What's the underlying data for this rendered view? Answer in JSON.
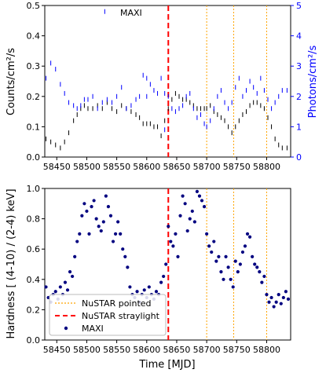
{
  "chart_data": [
    {
      "type": "scatter",
      "title": "",
      "annotation": "MAXI",
      "xlabel": "",
      "ylabel": "Counts/cm²/s",
      "ylabel_right": "Photons/cm²/s",
      "xlim": [
        58430,
        58840
      ],
      "ylim": [
        0,
        0.5
      ],
      "ylim_right": [
        0,
        5
      ],
      "xticks": [
        "58450",
        "58500",
        "58550",
        "58600",
        "58650",
        "58700",
        "58750",
        "58800"
      ],
      "yticks": [
        "0.0",
        "0.1",
        "0.2",
        "0.3",
        "0.4",
        "0.5"
      ],
      "yticks_right": [
        "0",
        "1",
        "2",
        "3",
        "4",
        "5"
      ],
      "colors": {
        "counts": "#000000",
        "photons": "#0000ff"
      },
      "series": [
        {
          "axis": "left",
          "x": [
            58432,
            58440,
            58448,
            58456,
            58463,
            58470,
            58478,
            58484,
            58490,
            58496,
            58502,
            58510,
            58518,
            58526,
            58534,
            58542,
            58550,
            58558,
            58566,
            58574,
            58582,
            58588,
            58594,
            58600,
            58606,
            58612,
            58618,
            58624,
            58630,
            58636,
            58642,
            58648,
            58654,
            58660,
            58666,
            58672,
            58678,
            58684,
            58690,
            58696,
            58700,
            58706,
            58712,
            58718,
            58724,
            58730,
            58736,
            58742,
            58748,
            58754,
            58760,
            58766,
            58772,
            58778,
            58784,
            58790,
            58796,
            58802,
            58808,
            58814,
            58820,
            58826,
            58834
          ],
          "y": [
            0.06,
            0.05,
            0.04,
            0.03,
            0.05,
            0.08,
            0.12,
            0.14,
            0.16,
            0.17,
            0.16,
            0.16,
            0.17,
            0.16,
            0.18,
            0.16,
            0.15,
            0.17,
            0.16,
            0.15,
            0.14,
            0.13,
            0.11,
            0.11,
            0.11,
            0.1,
            0.1,
            0.07,
            0.12,
            0.16,
            0.19,
            0.21,
            0.2,
            0.19,
            0.19,
            0.18,
            0.17,
            0.16,
            0.16,
            0.16,
            0.16,
            0.17,
            0.15,
            0.14,
            0.13,
            0.12,
            0.1,
            0.08,
            0.1,
            0.12,
            0.14,
            0.15,
            0.17,
            0.18,
            0.18,
            0.17,
            0.16,
            0.13,
            0.1,
            0.06,
            0.04,
            0.03,
            0.03
          ]
        },
        {
          "axis": "right",
          "x": [
            58432,
            58440,
            58448,
            58456,
            58463,
            58470,
            58478,
            58484,
            58490,
            58496,
            58502,
            58510,
            58518,
            58526,
            58534,
            58542,
            58550,
            58558,
            58566,
            58574,
            58582,
            58588,
            58594,
            58600,
            58606,
            58612,
            58618,
            58624,
            58630,
            58636,
            58642,
            58648,
            58654,
            58660,
            58666,
            58672,
            58678,
            58684,
            58690,
            58696,
            58700,
            58706,
            58712,
            58718,
            58724,
            58730,
            58736,
            58742,
            58748,
            58754,
            58760,
            58766,
            58772,
            58778,
            58784,
            58790,
            58796,
            58802,
            58808,
            58814,
            58820,
            58826,
            58834,
            58530,
            58600,
            58630
          ],
          "y": [
            2.6,
            3.1,
            2.9,
            2.4,
            2.1,
            1.8,
            1.7,
            1.6,
            1.7,
            1.9,
            1.9,
            2.0,
            1.6,
            1.8,
            1.9,
            1.8,
            2.0,
            2.3,
            1.6,
            1.7,
            1.9,
            2.0,
            2.7,
            2.6,
            2.4,
            2.2,
            2.1,
            2.6,
            2.1,
            2.0,
            1.6,
            1.5,
            1.6,
            1.7,
            2.0,
            2.1,
            1.6,
            1.3,
            1.4,
            1.1,
            1.0,
            1.2,
            1.6,
            2.0,
            2.2,
            1.8,
            1.6,
            1.8,
            2.3,
            2.6,
            2.0,
            2.2,
            2.5,
            2.3,
            2.1,
            2.6,
            2.2,
            1.9,
            1.6,
            1.8,
            2.0,
            2.2,
            2.2,
            4.8,
            2.0,
            0.9
          ]
        }
      ],
      "vlines": [
        {
          "x": 58636,
          "style": "dashed",
          "color": "#ff0000"
        },
        {
          "x": 58700,
          "style": "dotted",
          "color": "#ffa500"
        },
        {
          "x": 58745,
          "style": "dotted",
          "color": "#ffa500"
        },
        {
          "x": 58800,
          "style": "dotted",
          "color": "#ffa500"
        }
      ]
    },
    {
      "type": "scatter",
      "title": "",
      "xlabel": "Time [MJD]",
      "ylabel": "Hardness [ (4-10) / (2-4) keV]",
      "xlim": [
        58430,
        58840
      ],
      "ylim": [
        0,
        1.0
      ],
      "xticks": [
        "58450",
        "58500",
        "58550",
        "58600",
        "58650",
        "58700",
        "58750",
        "58800"
      ],
      "yticks": [
        "0.0",
        "0.2",
        "0.4",
        "0.6",
        "0.8",
        "1.0"
      ],
      "legend_position": "bottom-left",
      "legend": [
        "NuSTAR pointed",
        "NuSTAR straylight",
        "MAXI"
      ],
      "colors": {
        "points": "#000080"
      },
      "series": [
        {
          "name": "MAXI",
          "x": [
            58432,
            58436,
            58440,
            58444,
            58448,
            58452,
            58456,
            58460,
            58464,
            58468,
            58472,
            58476,
            58480,
            58484,
            58488,
            58492,
            58496,
            58500,
            58504,
            58508,
            58512,
            58516,
            58520,
            58524,
            58528,
            58532,
            58536,
            58540,
            58544,
            58548,
            58552,
            58556,
            58560,
            58564,
            58568,
            58572,
            58576,
            58580,
            58584,
            58588,
            58592,
            58596,
            58600,
            58604,
            58608,
            58612,
            58616,
            58620,
            58624,
            58628,
            58632,
            58636,
            58640,
            58644,
            58648,
            58652,
            58656,
            58660,
            58664,
            58668,
            58672,
            58676,
            58680,
            58684,
            58688,
            58692,
            58696,
            58700,
            58704,
            58708,
            58712,
            58716,
            58720,
            58724,
            58728,
            58732,
            58736,
            58740,
            58744,
            58748,
            58752,
            58756,
            58760,
            58764,
            58768,
            58772,
            58776,
            58780,
            58784,
            58788,
            58792,
            58796,
            58800,
            58804,
            58808,
            58812,
            58816,
            58820,
            58824,
            58828,
            58832,
            58836
          ],
          "y": [
            0.35,
            0.28,
            0.25,
            0.3,
            0.32,
            0.27,
            0.35,
            0.3,
            0.38,
            0.33,
            0.45,
            0.42,
            0.55,
            0.65,
            0.7,
            0.82,
            0.9,
            0.85,
            0.7,
            0.88,
            0.92,
            0.8,
            0.75,
            0.72,
            0.78,
            0.95,
            0.88,
            0.82,
            0.65,
            0.7,
            0.78,
            0.7,
            0.6,
            0.55,
            0.48,
            0.35,
            0.3,
            0.28,
            0.32,
            0.25,
            0.3,
            0.33,
            0.28,
            0.35,
            0.3,
            0.27,
            0.32,
            0.3,
            0.38,
            0.42,
            0.5,
            0.75,
            0.65,
            0.62,
            0.7,
            0.55,
            0.82,
            0.95,
            0.9,
            0.72,
            0.8,
            0.85,
            0.78,
            0.98,
            0.95,
            0.92,
            0.88,
            0.7,
            0.62,
            0.58,
            0.65,
            0.52,
            0.55,
            0.45,
            0.4,
            0.55,
            0.48,
            0.4,
            0.35,
            0.52,
            0.45,
            0.5,
            0.58,
            0.62,
            0.7,
            0.68,
            0.55,
            0.5,
            0.48,
            0.45,
            0.38,
            0.42,
            0.3,
            0.25,
            0.28,
            0.22,
            0.25,
            0.3,
            0.24,
            0.28,
            0.32,
            0.27
          ]
        }
      ],
      "vlines": [
        {
          "x": 58636,
          "style": "dashed",
          "color": "#ff0000"
        },
        {
          "x": 58700,
          "style": "dotted",
          "color": "#ffa500"
        },
        {
          "x": 58745,
          "style": "dotted",
          "color": "#ffa500"
        },
        {
          "x": 58800,
          "style": "dotted",
          "color": "#ffa500"
        }
      ]
    }
  ]
}
